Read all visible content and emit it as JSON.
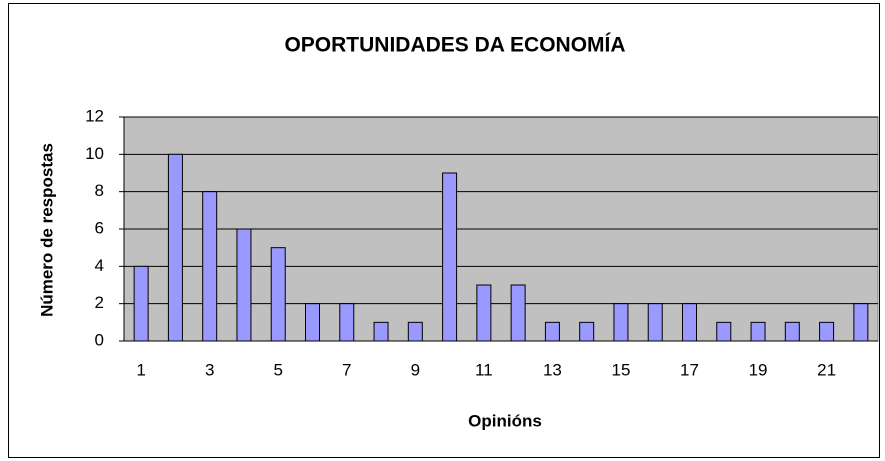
{
  "chart_data": {
    "type": "bar",
    "title": "OPORTUNIDADES DA ECONOMÍA",
    "xlabel": "Opinións",
    "ylabel": "Número de respostas",
    "categories": [
      1,
      null,
      3,
      null,
      5,
      null,
      7,
      null,
      9,
      null,
      11,
      null,
      13,
      null,
      15,
      null,
      17,
      null,
      19,
      null,
      21,
      null
    ],
    "values": [
      4,
      10,
      8,
      6,
      5,
      2,
      2,
      1,
      1,
      9,
      3,
      3,
      1,
      1,
      2,
      2,
      2,
      1,
      1,
      1,
      1,
      2
    ],
    "color": "#9999ff",
    "ylim": [
      0,
      12
    ],
    "yticks": [
      0,
      2,
      4,
      6,
      8,
      10,
      12
    ],
    "grid": true
  }
}
